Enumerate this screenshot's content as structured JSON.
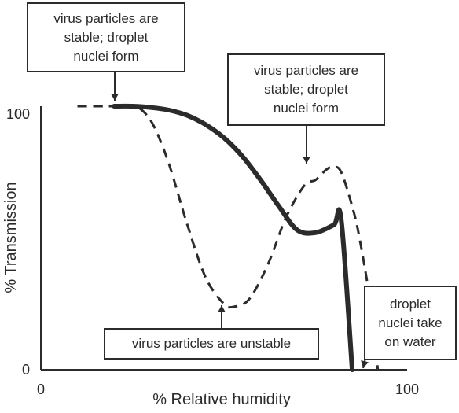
{
  "chart_data": {
    "type": "line",
    "xlabel": "% Relative humidity",
    "ylabel": "% Transmission",
    "xlim": [
      0,
      100
    ],
    "ylim": [
      0,
      100
    ],
    "x_ticks": [
      "0",
      "100"
    ],
    "y_ticks": [
      "0",
      "100"
    ],
    "grid": false,
    "legend": "none",
    "series": [
      {
        "style": "solid",
        "color": "#2b2b2b",
        "x": [
          10,
          20,
          25,
          30,
          35,
          40,
          45,
          50,
          55,
          60,
          65,
          70,
          75,
          80,
          82,
          85,
          87,
          90,
          93,
          95,
          97,
          99
        ],
        "y": [
          100,
          100,
          100,
          99.5,
          98.5,
          96.5,
          93,
          88,
          81,
          72,
          62,
          53,
          52,
          55,
          57,
          0,
          null,
          null,
          null,
          null,
          null,
          null
        ]
      },
      {
        "style": "dashed",
        "color": "#2b2b2b",
        "x": [
          10,
          20,
          25,
          28,
          31,
          35,
          40,
          45,
          50,
          53,
          57,
          62,
          67,
          72,
          75,
          78,
          80,
          82,
          85,
          87,
          90,
          92
        ],
        "y": [
          100,
          100,
          100,
          98,
          92,
          78,
          55,
          35,
          25,
          24,
          27,
          40,
          58,
          70,
          72,
          76,
          77,
          75,
          62,
          50,
          25,
          0
        ]
      }
    ],
    "annotations": [
      {
        "id": "stable-top",
        "text": "virus particles are\nstable; droplet\nnuclei form"
      },
      {
        "id": "stable-mid",
        "text": "virus particles are\nstable; droplet\nnuclei form"
      },
      {
        "id": "unstable",
        "text": "virus particles are unstable"
      },
      {
        "id": "water",
        "text": "droplet\nnuclei take\non water"
      }
    ]
  }
}
